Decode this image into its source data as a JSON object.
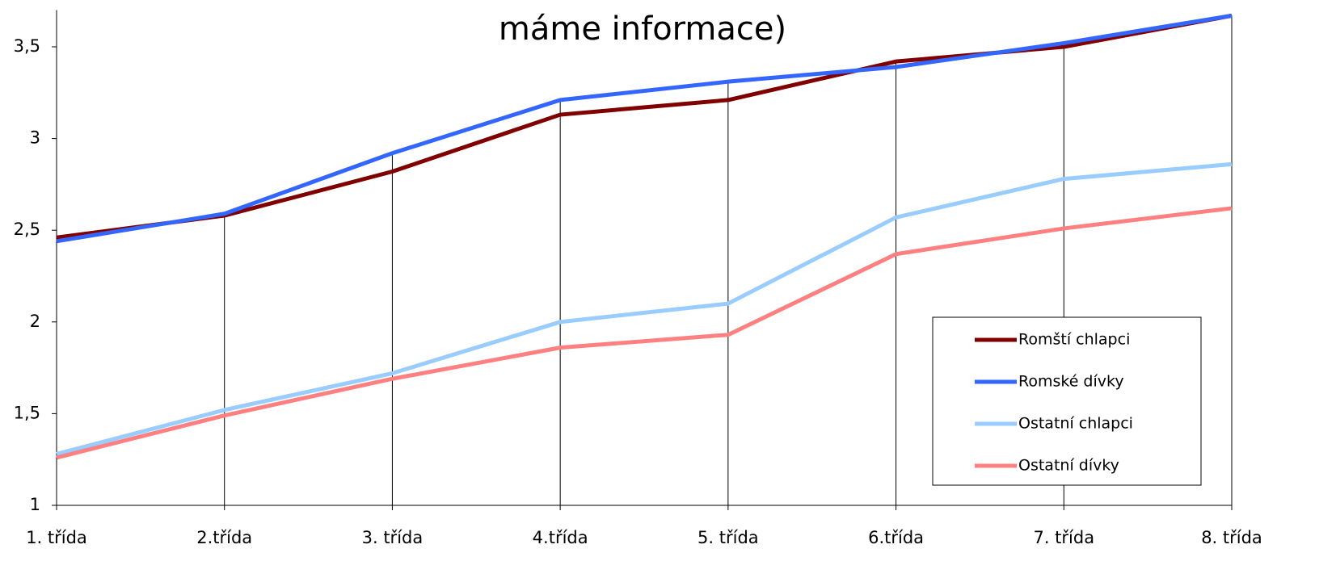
{
  "chart_data": {
    "type": "line",
    "title": "máme informace)",
    "categories": [
      "1. třída",
      "2.třída",
      "3. třída",
      "4.třída",
      "5. třída",
      "6.třída",
      "7. třída",
      "8. třída"
    ],
    "series": [
      {
        "name": "Romští chlapci",
        "color": "#800000",
        "values": [
          2.46,
          2.58,
          2.82,
          3.13,
          3.21,
          3.42,
          3.5,
          3.67
        ]
      },
      {
        "name": "Romské dívky",
        "color": "#3366ff",
        "values": [
          2.44,
          2.59,
          2.92,
          3.21,
          3.31,
          3.39,
          3.52,
          3.67
        ]
      },
      {
        "name": "Ostatní chlapci",
        "color": "#99ccff",
        "values": [
          1.28,
          1.52,
          1.72,
          2.0,
          2.1,
          2.57,
          2.78,
          2.86
        ]
      },
      {
        "name": "Ostatní dívky",
        "color": "#ff8080",
        "values": [
          1.26,
          1.49,
          1.69,
          1.86,
          1.93,
          2.37,
          2.51,
          2.62
        ]
      }
    ],
    "ylim": [
      1,
      3.7
    ],
    "yticks": [
      1,
      {
        "value": 1.5,
        "label": "1,5"
      },
      2,
      {
        "value": 2.5,
        "label": "2,5"
      },
      3,
      {
        "value": 3.5,
        "label": "3,5"
      }
    ],
    "drop_lines": true,
    "legend": "lower right"
  }
}
